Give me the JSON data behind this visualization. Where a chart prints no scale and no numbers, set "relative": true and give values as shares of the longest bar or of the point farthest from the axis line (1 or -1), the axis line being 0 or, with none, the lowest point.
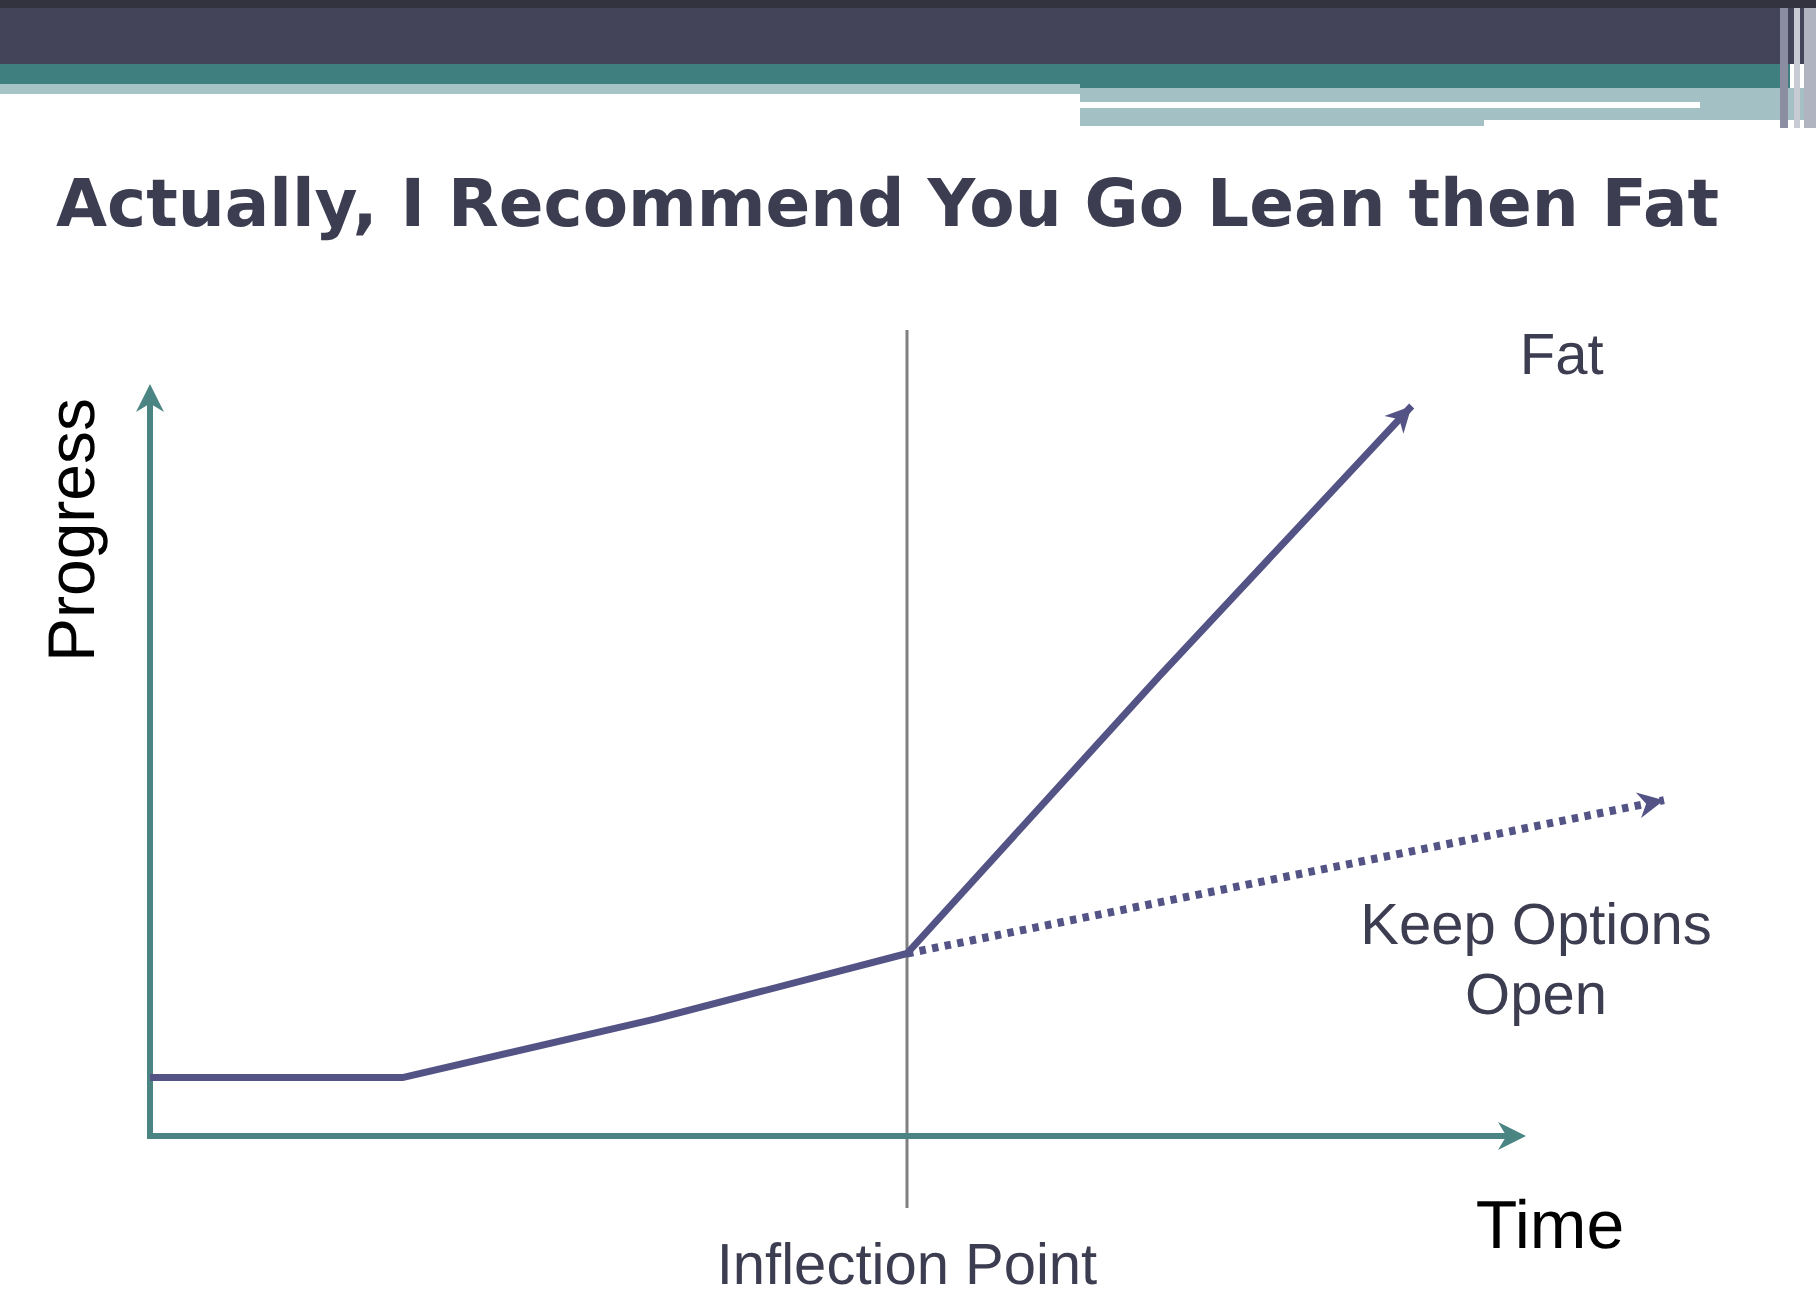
{
  "chart_data": {
    "type": "line",
    "title": "Actually, I Recommend You Go Lean then Fat",
    "xlabel": "Time",
    "ylabel": "Progress",
    "relative": true,
    "categories": [
      null,
      null,
      null,
      null,
      null,
      null,
      null
    ],
    "series": [
      {
        "name": "Fat",
        "color": "#535386",
        "line_style": "solid",
        "values": [
          0.08,
          0.08,
          0.16,
          0.25,
          0.63,
          1,
          null
        ]
      },
      {
        "name": "Keep Options Open",
        "color": "#535386",
        "line_style": "dotted",
        "values": [
          null,
          null,
          null,
          0.25,
          0.32,
          0.39,
          0.46
        ]
      }
    ],
    "annotations": [
      "Inflection Point"
    ]
  }
}
